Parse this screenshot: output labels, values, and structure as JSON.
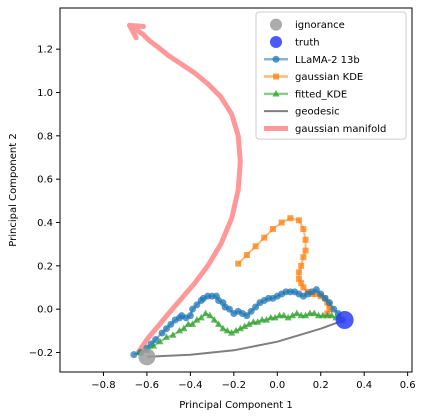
{
  "chart_data": {
    "type": "line",
    "xlabel": "Principal Component 1",
    "ylabel": "Principal Component 2",
    "xlim": [
      -1.0,
      0.62
    ],
    "ylim": [
      -0.29,
      1.39
    ],
    "xticks": [
      -0.8,
      -0.6,
      -0.4,
      -0.2,
      0.0,
      0.2,
      0.4,
      0.6
    ],
    "xtick_labels": [
      "−0.8",
      "−0.6",
      "−0.4",
      "−0.2",
      "0.0",
      "0.2",
      "0.4",
      "0.6"
    ],
    "yticks": [
      -0.2,
      0.0,
      0.2,
      0.4,
      0.6,
      0.8,
      1.0,
      1.2
    ],
    "ytick_labels": [
      "−0.2",
      "0.0",
      "0.2",
      "0.4",
      "0.6",
      "0.8",
      "1.0",
      "1.2"
    ],
    "legend_position": "top-right",
    "series": [
      {
        "name": "ignorance",
        "kind": "point",
        "color": "#9e9e9e",
        "x": [
          -0.6
        ],
        "y": [
          -0.22
        ]
      },
      {
        "name": "truth",
        "kind": "point",
        "color": "#2d3cf5",
        "x": [
          0.31
        ],
        "y": [
          -0.05
        ]
      },
      {
        "name": "LLaMA-2 13b",
        "kind": "line-marker",
        "marker": "circle",
        "color": "#1f77b4",
        "x": [
          -0.66,
          -0.63,
          -0.6,
          -0.58,
          -0.56,
          -0.53,
          -0.51,
          -0.49,
          -0.47,
          -0.45,
          -0.44,
          -0.42,
          -0.4,
          -0.39,
          -0.37,
          -0.35,
          -0.34,
          -0.32,
          -0.3,
          -0.28,
          -0.27,
          -0.25,
          -0.24,
          -0.22,
          -0.2,
          -0.18,
          -0.16,
          -0.14,
          -0.12,
          -0.1,
          -0.08,
          -0.06,
          -0.04,
          -0.02,
          0.0,
          0.02,
          0.04,
          0.06,
          0.08,
          0.1,
          0.12,
          0.14,
          0.16,
          0.18,
          0.2,
          0.22,
          0.24,
          0.26,
          0.28,
          0.3
        ],
        "y": [
          -0.21,
          -0.2,
          -0.18,
          -0.16,
          -0.14,
          -0.11,
          -0.09,
          -0.07,
          -0.05,
          -0.04,
          -0.03,
          -0.04,
          -0.03,
          0.0,
          0.02,
          0.04,
          0.05,
          0.06,
          0.06,
          0.06,
          0.04,
          0.03,
          0.01,
          0.0,
          -0.02,
          -0.01,
          -0.02,
          -0.03,
          -0.01,
          0.01,
          0.03,
          0.04,
          0.05,
          0.05,
          0.06,
          0.07,
          0.08,
          0.08,
          0.08,
          0.07,
          0.06,
          0.07,
          0.08,
          0.09,
          0.07,
          0.05,
          0.03,
          0.0,
          -0.02,
          -0.05
        ]
      },
      {
        "name": "gaussian KDE",
        "kind": "line-marker",
        "marker": "square",
        "color": "#ff7f0e",
        "x": [
          -0.18,
          -0.14,
          -0.1,
          -0.06,
          -0.02,
          0.02,
          0.06,
          0.1,
          0.12,
          0.13,
          0.13,
          0.12,
          0.11,
          0.1,
          0.1,
          0.11,
          0.12,
          0.14,
          0.16,
          0.18,
          0.2,
          0.22,
          0.23,
          0.24,
          0.24,
          0.23
        ],
        "y": [
          0.21,
          0.25,
          0.29,
          0.33,
          0.37,
          0.4,
          0.42,
          0.41,
          0.37,
          0.32,
          0.27,
          0.24,
          0.2,
          0.17,
          0.14,
          0.12,
          0.1,
          0.08,
          0.07,
          0.07,
          0.06,
          0.05,
          0.03,
          0.02,
          0.0,
          -0.02
        ]
      },
      {
        "name": "fitted_KDE",
        "kind": "line-marker",
        "marker": "triangle",
        "color": "#2ca02c",
        "x": [
          -0.63,
          -0.6,
          -0.57,
          -0.54,
          -0.51,
          -0.48,
          -0.45,
          -0.43,
          -0.41,
          -0.39,
          -0.37,
          -0.35,
          -0.33,
          -0.31,
          -0.29,
          -0.27,
          -0.25,
          -0.23,
          -0.21,
          -0.19,
          -0.17,
          -0.15,
          -0.13,
          -0.11,
          -0.09,
          -0.07,
          -0.05,
          -0.03,
          -0.01,
          0.01,
          0.03,
          0.05,
          0.07,
          0.09,
          0.11,
          0.13,
          0.15,
          0.17,
          0.19,
          0.21,
          0.23,
          0.25,
          0.27,
          0.29
        ],
        "y": [
          -0.2,
          -0.19,
          -0.17,
          -0.15,
          -0.13,
          -0.12,
          -0.1,
          -0.09,
          -0.07,
          -0.07,
          -0.05,
          -0.04,
          -0.02,
          -0.03,
          -0.05,
          -0.07,
          -0.09,
          -0.1,
          -0.11,
          -0.1,
          -0.09,
          -0.08,
          -0.07,
          -0.06,
          -0.06,
          -0.05,
          -0.05,
          -0.04,
          -0.04,
          -0.03,
          -0.03,
          -0.04,
          -0.03,
          -0.02,
          -0.03,
          -0.03,
          -0.02,
          -0.02,
          -0.03,
          -0.03,
          -0.03,
          -0.03,
          -0.04,
          -0.04
        ]
      },
      {
        "name": "geodesic",
        "kind": "line",
        "color": "#7f7f7f",
        "x": [
          -0.6,
          -0.5,
          -0.4,
          -0.3,
          -0.2,
          -0.1,
          0.0,
          0.1,
          0.2,
          0.31
        ],
        "y": [
          -0.22,
          -0.215,
          -0.21,
          -0.2,
          -0.19,
          -0.17,
          -0.15,
          -0.12,
          -0.09,
          -0.05
        ]
      },
      {
        "name": "gaussian manifold",
        "kind": "line-arrow",
        "color": "#ff9999",
        "x": [
          -0.64,
          -0.6,
          -0.55,
          -0.5,
          -0.44,
          -0.38,
          -0.32,
          -0.26,
          -0.21,
          -0.18,
          -0.17,
          -0.18,
          -0.21,
          -0.26,
          -0.32,
          -0.38,
          -0.44,
          -0.5,
          -0.55,
          -0.59,
          -0.62,
          -0.65,
          -0.68
        ],
        "y": [
          -0.2,
          -0.14,
          -0.08,
          -0.02,
          0.05,
          0.12,
          0.2,
          0.3,
          0.42,
          0.55,
          0.68,
          0.8,
          0.9,
          0.98,
          1.04,
          1.09,
          1.13,
          1.17,
          1.21,
          1.24,
          1.27,
          1.29,
          1.31
        ]
      }
    ]
  }
}
